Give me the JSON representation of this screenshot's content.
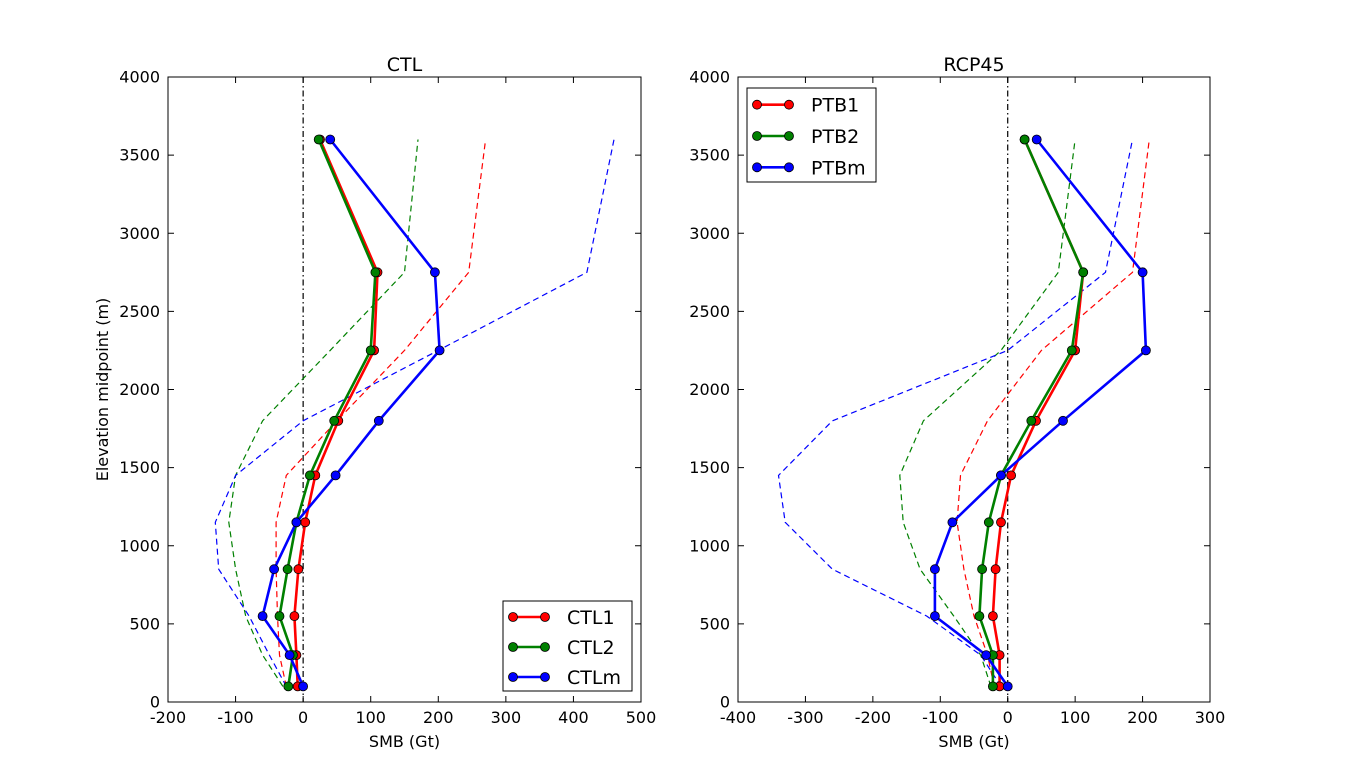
{
  "chart_data": [
    {
      "type": "line",
      "title": "CTL",
      "xlabel": "SMB (Gt)",
      "ylabel": "Elevation midpoint (m)",
      "xlim": [
        -200,
        500
      ],
      "ylim": [
        0,
        4000
      ],
      "xticks": [
        -200,
        -100,
        0,
        100,
        200,
        300,
        400,
        500
      ],
      "yticks": [
        0,
        500,
        1000,
        1500,
        2000,
        2500,
        3000,
        3500,
        4000
      ],
      "grid": false,
      "legend": "lower-right",
      "y": [
        100,
        300,
        550,
        850,
        1150,
        1450,
        1800,
        2250,
        2750,
        3600
      ],
      "series": [
        {
          "name": "CTL1",
          "color": "#ff0000",
          "style": "solid-marker",
          "x": [
            -8,
            -10,
            -13,
            -7,
            3,
            18,
            52,
            105,
            110,
            25
          ]
        },
        {
          "name": "CTL2",
          "color": "#008000",
          "style": "solid-marker",
          "x": [
            -22,
            -15,
            -35,
            -23,
            -10,
            10,
            46,
            100,
            107,
            23
          ]
        },
        {
          "name": "CTLm",
          "color": "#0000ff",
          "style": "solid-marker",
          "x": [
            0,
            -20,
            -60,
            -43,
            -10,
            48,
            112,
            202,
            195,
            40
          ]
        }
      ],
      "reference_series": [
        {
          "color": "#ff0000",
          "style": "dashed",
          "x": [
            -25,
            -35,
            -38,
            -40,
            -40,
            -25,
            50,
            150,
            245,
            270
          ]
        },
        {
          "color": "#008000",
          "style": "dashed",
          "x": [
            -30,
            -60,
            -85,
            -100,
            -110,
            -100,
            -60,
            40,
            150,
            170
          ]
        },
        {
          "color": "#0000ff",
          "style": "dashed",
          "x": [
            -25,
            -50,
            -80,
            -125,
            -130,
            -100,
            0,
            200,
            420,
            460
          ]
        }
      ],
      "zero_line": true
    },
    {
      "type": "line",
      "title": "RCP45",
      "xlabel": "SMB (Gt)",
      "ylabel": "",
      "xlim": [
        -400,
        300
      ],
      "ylim": [
        0,
        4000
      ],
      "xticks": [
        -400,
        -300,
        -200,
        -100,
        0,
        100,
        200,
        300
      ],
      "yticks": [
        0,
        500,
        1000,
        1500,
        2000,
        2500,
        3000,
        3500,
        4000
      ],
      "grid": false,
      "legend": "top-left",
      "y": [
        100,
        300,
        550,
        850,
        1150,
        1450,
        1800,
        2250,
        2750,
        3600
      ],
      "series": [
        {
          "name": "PTB1",
          "color": "#ff0000",
          "style": "solid-marker",
          "x": [
            -12,
            -12,
            -22,
            -18,
            -10,
            5,
            42,
            100,
            112,
            25
          ]
        },
        {
          "name": "PTB2",
          "color": "#008000",
          "style": "solid-marker",
          "x": [
            -22,
            -22,
            -42,
            -38,
            -28,
            -10,
            35,
            95,
            112,
            25
          ]
        },
        {
          "name": "PTBm",
          "color": "#0000ff",
          "style": "solid-marker",
          "x": [
            0,
            -32,
            -108,
            -108,
            -82,
            -10,
            82,
            205,
            200,
            43
          ]
        }
      ],
      "reference_series": [
        {
          "color": "#ff0000",
          "style": "dashed",
          "x": [
            -20,
            -30,
            -50,
            -65,
            -75,
            -70,
            -30,
            50,
            185,
            210
          ]
        },
        {
          "color": "#008000",
          "style": "dashed",
          "x": [
            -25,
            -40,
            -80,
            -130,
            -155,
            -160,
            -125,
            -10,
            75,
            100
          ]
        },
        {
          "color": "#0000ff",
          "style": "dashed",
          "x": [
            -10,
            -40,
            -120,
            -260,
            -330,
            -340,
            -260,
            0,
            145,
            185
          ]
        }
      ],
      "zero_line": true
    }
  ]
}
